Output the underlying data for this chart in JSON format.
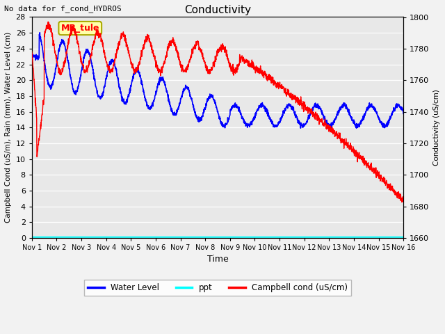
{
  "title": "Conductivity",
  "top_left_text": "No data for f_cond_HYDROS",
  "ylabel_left": "Campbell Cond (uS/m), Rain (mm), Water Level (cm)",
  "ylabel_right": "Conductivity (uS/cm)",
  "xlabel": "Time",
  "ylim_left": [
    0,
    28
  ],
  "ylim_right": [
    1660,
    1800
  ],
  "yticks_left": [
    0,
    2,
    4,
    6,
    8,
    10,
    12,
    14,
    16,
    18,
    20,
    22,
    24,
    26,
    28
  ],
  "yticks_right": [
    1660,
    1680,
    1700,
    1720,
    1740,
    1760,
    1780,
    1800
  ],
  "xticks": [
    1,
    2,
    3,
    4,
    5,
    6,
    7,
    8,
    9,
    10,
    11,
    12,
    13,
    14,
    15,
    16
  ],
  "xtick_labels": [
    "Nov 1",
    "Nov 2",
    "Nov 3",
    "Nov 4",
    "Nov 5",
    "Nov 6",
    "Nov 7",
    "Nov 8",
    "Nov 9",
    "Nov 10",
    "Nov 11",
    "Nov 12",
    "Nov 13",
    "Nov 14",
    "Nov 15",
    "Nov 16"
  ],
  "legend_entries": [
    "Water Level",
    "ppt",
    "Campbell cond (uS/cm)"
  ],
  "legend_colors": [
    "blue",
    "cyan",
    "red"
  ],
  "site_label": "MB_tule",
  "plot_bg": "#e8e8e8",
  "water_level_color": "blue",
  "ppt_color": "cyan",
  "campbell_color": "red",
  "fig_facecolor": "#f2f2f2"
}
